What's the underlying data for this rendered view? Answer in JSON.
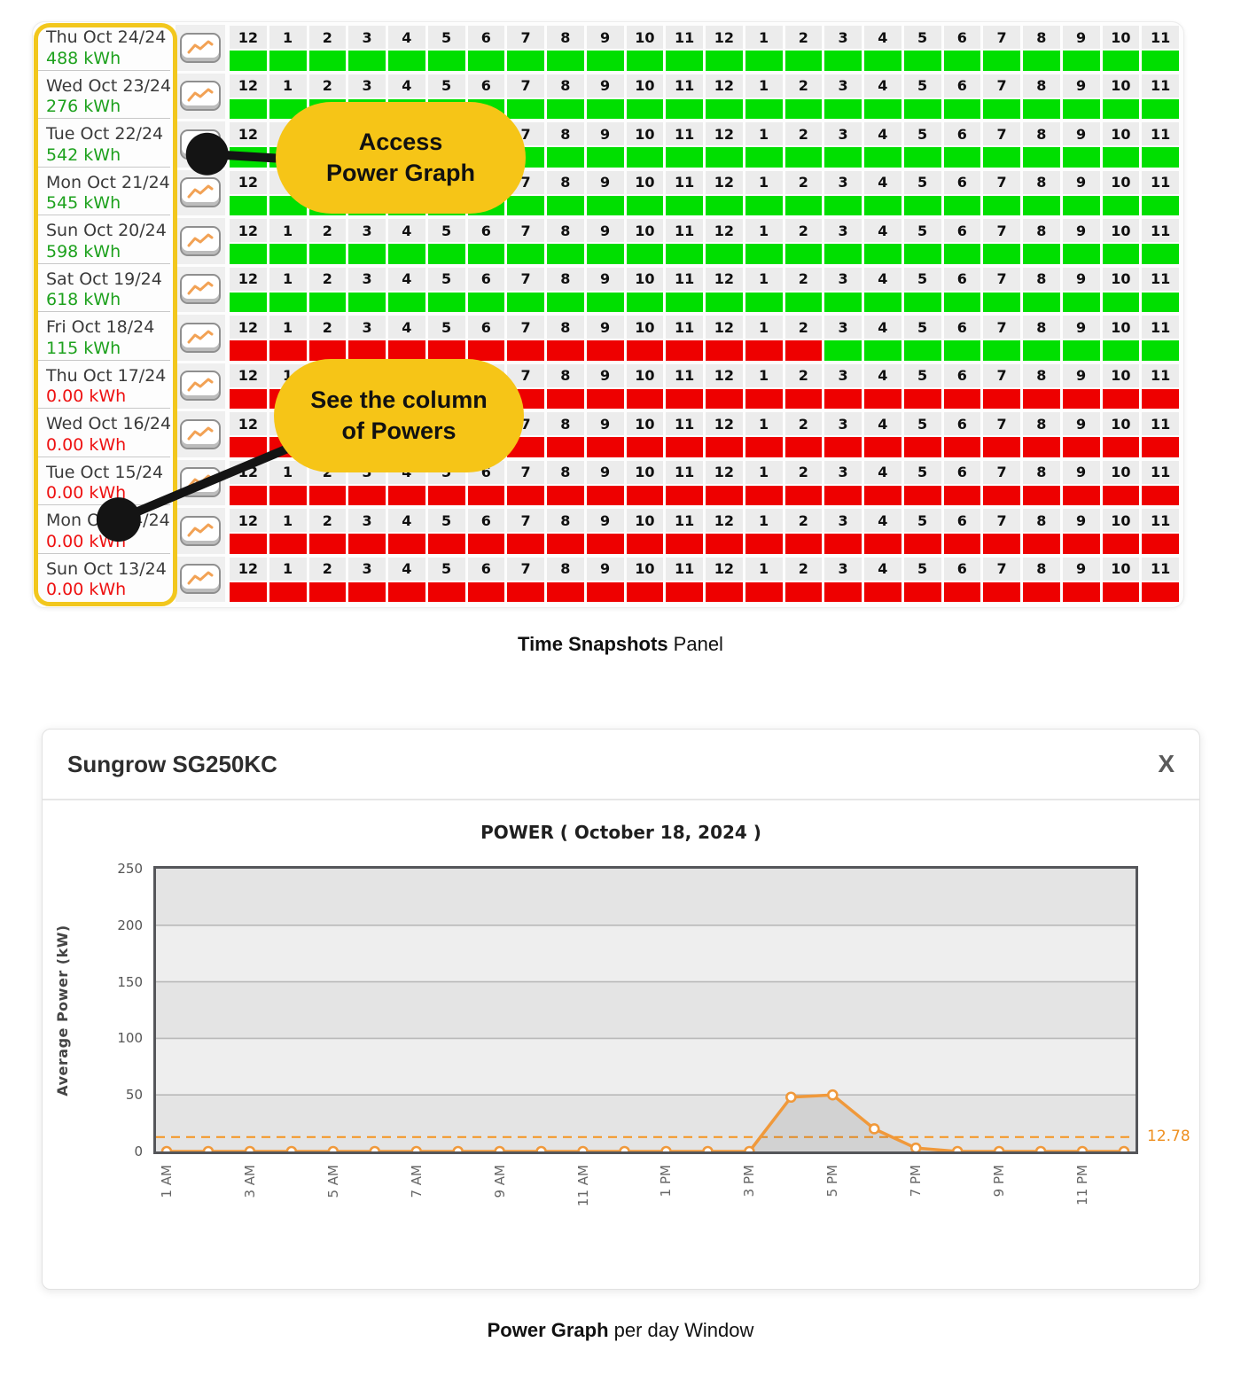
{
  "colors": {
    "green_cell": "#00DF00",
    "red_cell": "#EE0000",
    "green_text": "#1da11d",
    "red_text": "#ee1111",
    "highlight_yellow": "#F2C71D",
    "bubble_yellow": "#F6C517",
    "chart_orange": "#F0993B"
  },
  "snapshot_panel": {
    "hours": [
      "12",
      "1",
      "2",
      "3",
      "4",
      "5",
      "6",
      "7",
      "8",
      "9",
      "10",
      "11",
      "12",
      "1",
      "2",
      "3",
      "4",
      "5",
      "6",
      "7",
      "8",
      "9",
      "10",
      "11"
    ],
    "days": [
      {
        "date": "Thu Oct 24/24",
        "energy": "488 kWh",
        "level": "ok",
        "cells": "gggggggggggggggggggggggg"
      },
      {
        "date": "Wed Oct 23/24",
        "energy": "276 kWh",
        "level": "ok",
        "cells": "gggggggggggggggggggggggg"
      },
      {
        "date": "Tue Oct 22/24",
        "energy": "542 kWh",
        "level": "ok",
        "cells": "gggggggggggggggggggggggg"
      },
      {
        "date": "Mon Oct 21/24",
        "energy": "545 kWh",
        "level": "ok",
        "cells": "gggggggggggggggggggggggg"
      },
      {
        "date": "Sun Oct 20/24",
        "energy": "598 kWh",
        "level": "ok",
        "cells": "gggggggggggggggggggggggg"
      },
      {
        "date": "Sat Oct 19/24",
        "energy": "618 kWh",
        "level": "ok",
        "cells": "gggggggggggggggggggggggg"
      },
      {
        "date": "Fri Oct 18/24",
        "energy": "115 kWh",
        "level": "ok",
        "cells": "rrrrrrrrrrrrrrrggggggggg"
      },
      {
        "date": "Thu Oct 17/24",
        "energy": "0.00 kWh",
        "level": "zero",
        "cells": "rrrrrrrrrrrrrrrrrrrrrrrr"
      },
      {
        "date": "Wed Oct 16/24",
        "energy": "0.00 kWh",
        "level": "zero",
        "cells": "rrrrrrrrrrrrrrrrrrrrrrrr"
      },
      {
        "date": "Tue Oct 15/24",
        "energy": "0.00 kWh",
        "level": "zero",
        "cells": "rrrrrrrrrrrrrrrrrrrrrrrr"
      },
      {
        "date": "Mon Oct 14/24",
        "energy": "0.00 kWh",
        "level": "zero",
        "cells": "rrrrrrrrrrrrrrrrrrrrrrrr"
      },
      {
        "date": "Sun Oct 13/24",
        "energy": "0.00 kWh",
        "level": "zero",
        "cells": "rrrrrrrrrrrrrrrrrrrrrrrr"
      }
    ],
    "callouts": [
      {
        "line1": "Access",
        "line2": "Power Graph"
      },
      {
        "line1": "See the column",
        "line2": "of Powers"
      }
    ],
    "caption": {
      "bold": "Time Snapshots",
      "rest": " Panel"
    }
  },
  "power_window": {
    "title": "Sungrow SG250KC",
    "close_label": "X",
    "caption": {
      "bold": "Power Graph",
      "rest": " per day Window"
    }
  },
  "chart_data": {
    "type": "line",
    "title": "POWER ( October 18, 2024 )",
    "ylabel": "Average Power (kW)",
    "ylim": [
      0,
      250
    ],
    "y_ticks": [
      0,
      50,
      100,
      150,
      200,
      250
    ],
    "categories": [
      "1 AM",
      "2 AM",
      "3 AM",
      "4 AM",
      "5 AM",
      "6 AM",
      "7 AM",
      "8 AM",
      "9 AM",
      "10 AM",
      "11 AM",
      "12 PM",
      "1 PM",
      "2 PM",
      "3 PM",
      "4 PM",
      "5 PM",
      "6 PM",
      "7 PM",
      "8 PM",
      "9 PM",
      "10 PM",
      "11 PM",
      "12 AM"
    ],
    "x_tick_labels": [
      "1 AM",
      "3 AM",
      "5 AM",
      "7 AM",
      "9 AM",
      "11 AM",
      "1 PM",
      "3 PM",
      "5 PM",
      "7 PM",
      "9 PM",
      "11 PM"
    ],
    "values": [
      0,
      0,
      0,
      0,
      0,
      0,
      0,
      0,
      0,
      0,
      0,
      0,
      0,
      0,
      0,
      48,
      50,
      20,
      3,
      0,
      0,
      0,
      0,
      0
    ],
    "reference_line": {
      "value": 12.78,
      "label": "12.78"
    },
    "grid": true,
    "legend": "none"
  }
}
